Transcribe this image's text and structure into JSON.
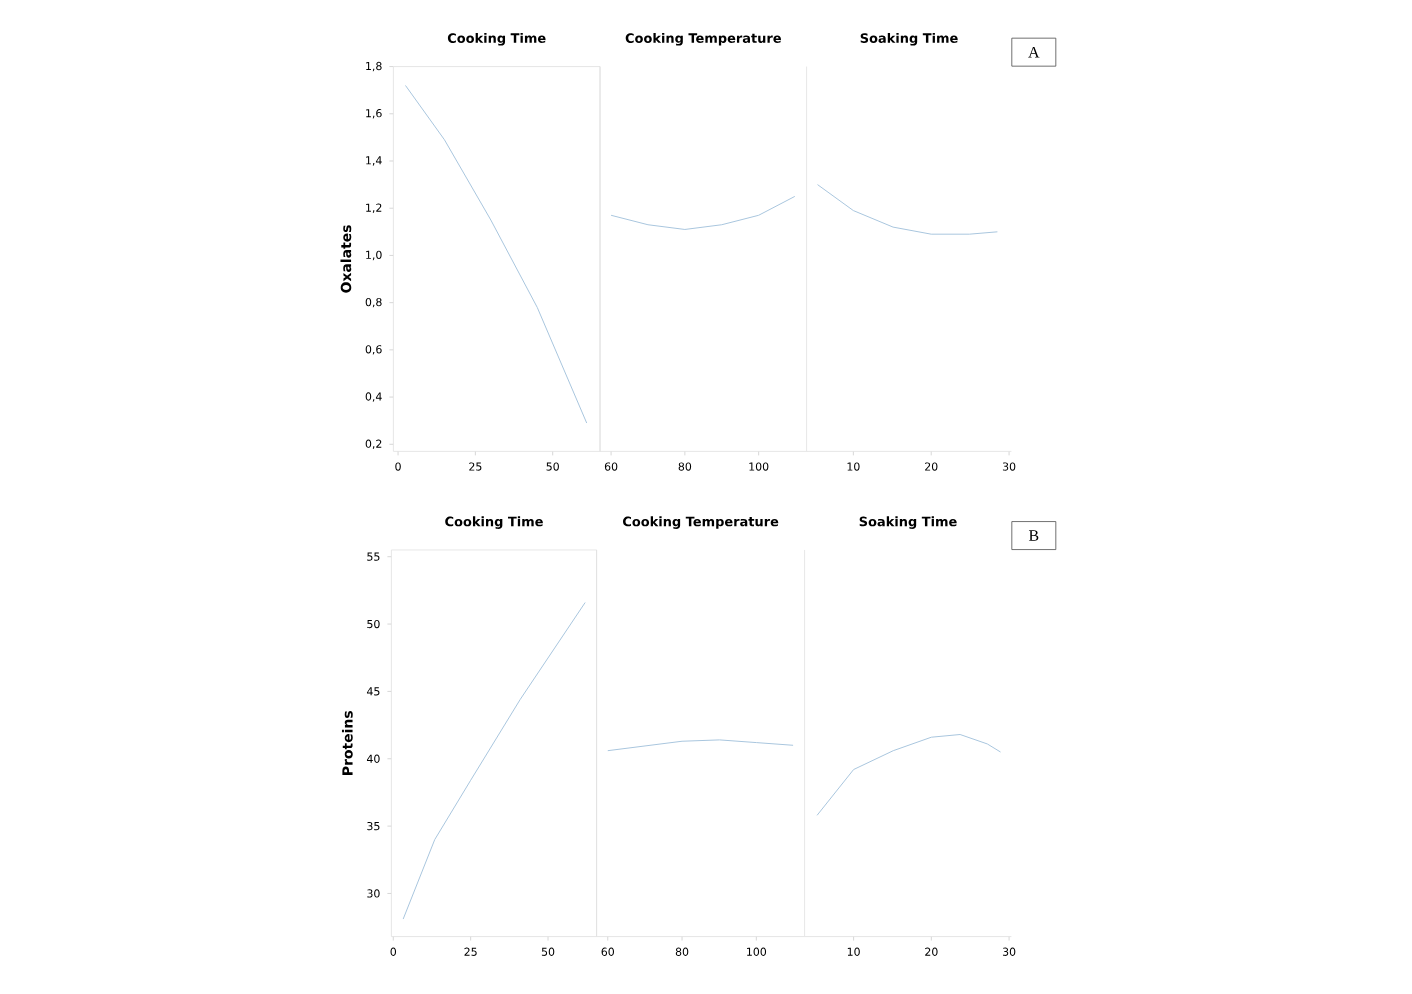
{
  "chart_data": [
    {
      "type": "line",
      "title": "Cooking Time",
      "ylabel": "Oxalates",
      "xlim": [
        -1.5,
        65.3
      ],
      "ylim": [
        0.17,
        1.8
      ],
      "xticks": [
        0,
        25,
        50
      ],
      "yticks": [
        {
          "value": 0.2,
          "label": "0,2"
        },
        {
          "value": 0.4,
          "label": "0,4"
        },
        {
          "value": 0.6,
          "label": "0,6"
        },
        {
          "value": 0.8,
          "label": "0,8"
        },
        {
          "value": 1.0,
          "label": "1,0"
        },
        {
          "value": 1.2,
          "label": "1,2"
        },
        {
          "value": 1.4,
          "label": "1,4"
        },
        {
          "value": 1.6,
          "label": "1,6"
        },
        {
          "value": 1.8,
          "label": "1,8"
        }
      ],
      "series": [
        {
          "color": "#a9c6de",
          "x": [
            2.4,
            15,
            30,
            45,
            61
          ],
          "values": [
            1.72,
            1.49,
            1.15,
            0.78,
            0.29
          ]
        }
      ]
    },
    {
      "type": "line",
      "title": "Cooking Temperature",
      "xlim": [
        57,
        113
      ],
      "ylim": [
        0.17,
        1.8
      ],
      "xticks": [
        60,
        80,
        100
      ],
      "yticks": [
        0.2,
        0.4,
        0.6,
        0.8,
        1.0,
        1.2,
        1.4,
        1.6,
        1.8
      ],
      "tick_labels": "x",
      "series": [
        {
          "color": "#a9c6de",
          "x": [
            60,
            70,
            80,
            90,
            100,
            109.8
          ],
          "values": [
            1.17,
            1.13,
            1.11,
            1.13,
            1.17,
            1.25
          ]
        }
      ]
    },
    {
      "type": "line",
      "title": "Soaking Time",
      "xlim": [
        4,
        30.3
      ],
      "ylim": [
        0.17,
        1.8
      ],
      "xticks": [
        10,
        20,
        30
      ],
      "yticks": [
        0.2,
        0.4,
        0.6,
        0.8,
        1.0,
        1.2,
        1.4,
        1.6,
        1.8
      ],
      "tick_labels": "x",
      "annotations": [
        "A"
      ],
      "series": [
        {
          "color": "#a9c6de",
          "x": [
            5.4,
            10,
            15.1,
            20,
            24.9,
            28.5
          ],
          "values": [
            1.3,
            1.19,
            1.12,
            1.09,
            1.09,
            1.1
          ]
        }
      ]
    },
    {
      "type": "line",
      "title": "Cooking Time",
      "ylabel": "Proteins",
      "xlim": [
        -0.6,
        65.7
      ],
      "ylim": [
        26.8,
        55.5
      ],
      "xticks": [
        0,
        25,
        50
      ],
      "yticks": [
        30,
        35,
        40,
        45,
        50,
        55
      ],
      "series": [
        {
          "color": "#a9c6de",
          "x": [
            3.2,
            13.4,
            25,
            41,
            62
          ],
          "values": [
            28.1,
            34.0,
            38.4,
            44.4,
            51.6
          ]
        }
      ]
    },
    {
      "type": "line",
      "title": "Cooking Temperature",
      "xlim": [
        57,
        113
      ],
      "ylim": [
        26.8,
        55.5
      ],
      "xticks": [
        60,
        80,
        100
      ],
      "yticks": [
        30,
        35,
        40,
        45,
        50,
        55
      ],
      "tick_labels": "x",
      "series": [
        {
          "color": "#a9c6de",
          "x": [
            60,
            80,
            90.1,
            100,
            109.9
          ],
          "values": [
            40.6,
            41.3,
            41.4,
            41.2,
            41.0
          ]
        }
      ]
    },
    {
      "type": "line",
      "title": "Soaking Time",
      "xlim": [
        3.7,
        30.3
      ],
      "ylim": [
        26.8,
        55.5
      ],
      "xticks": [
        10,
        20,
        30
      ],
      "yticks": [
        30,
        35,
        40,
        45,
        50,
        55
      ],
      "tick_labels": "x",
      "annotations": [
        "B"
      ],
      "series": [
        {
          "color": "#a9c6de",
          "x": [
            5.3,
            10,
            15.1,
            20,
            23.7,
            27.2,
            28.9
          ],
          "values": [
            35.8,
            39.2,
            40.6,
            41.6,
            41.8,
            41.1,
            40.5
          ]
        }
      ]
    }
  ]
}
